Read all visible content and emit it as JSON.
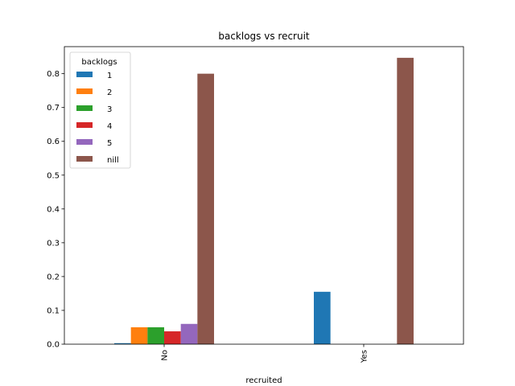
{
  "chart_data": {
    "type": "bar",
    "title": "backlogs vs recruit",
    "xlabel": "recruited",
    "ylabel": "",
    "categories": [
      "No",
      "Yes"
    ],
    "ylim": [
      0,
      0.88
    ],
    "yticks": [
      0.0,
      0.1,
      0.2,
      0.3,
      0.4,
      0.5,
      0.6,
      0.7,
      0.8
    ],
    "grid": false,
    "legend": {
      "title": "backlogs",
      "placement": "top-left"
    },
    "series": [
      {
        "name": "1",
        "color": "#1f77b4",
        "values": [
          0.003,
          0.155
        ]
      },
      {
        "name": "2",
        "color": "#ff7f0e",
        "values": [
          0.05,
          0.0
        ]
      },
      {
        "name": "3",
        "color": "#2ca02c",
        "values": [
          0.05,
          0.0
        ]
      },
      {
        "name": "4",
        "color": "#d62728",
        "values": [
          0.038,
          0.0
        ]
      },
      {
        "name": "5",
        "color": "#9467bd",
        "values": [
          0.06,
          0.0
        ]
      },
      {
        "name": "nill",
        "color": "#8c564b",
        "values": [
          0.8,
          0.847
        ]
      }
    ]
  }
}
